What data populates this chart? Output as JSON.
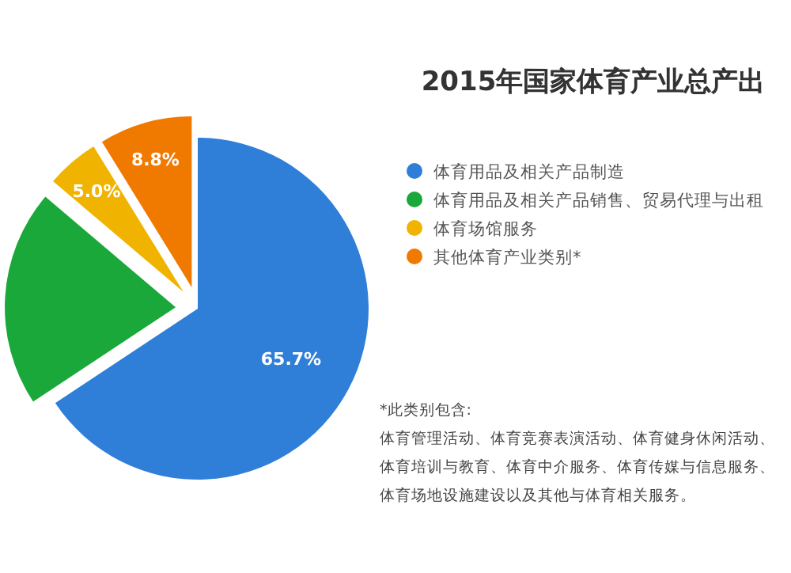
{
  "chart_data": {
    "type": "pie",
    "title": "2015年国家体育产业总产出",
    "categories": [
      "体育用品及相关产品制造",
      "体育用品及相关产品销售、贸易代理与出租",
      "体育场馆服务",
      "其他体育产业类别*"
    ],
    "values": [
      65.7,
      20.5,
      5.0,
      8.8
    ],
    "colors": [
      "#2f7fd8",
      "#1aa83a",
      "#f0b400",
      "#f07a00"
    ],
    "value_labels": [
      "65.7%",
      null,
      "5.0%",
      "8.8%"
    ],
    "legend": "right",
    "annotations": [
      "*此类别包含:",
      "体育管理活动、体育竞赛表演活动、体育健身休闲活动、",
      "体育培训与教育、体育中介服务、体育传媒与信息服务、",
      "体育场地设施建设以及其他与体育相关服务。"
    ]
  }
}
